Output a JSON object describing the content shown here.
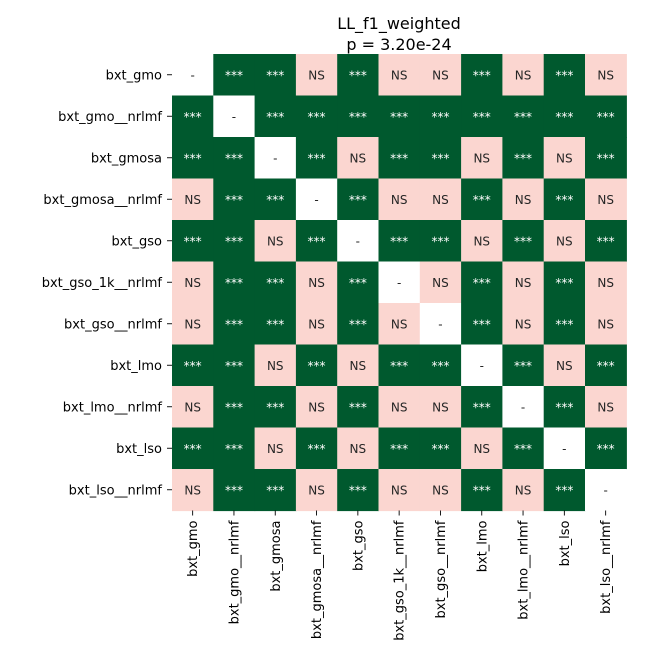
{
  "chart_data": {
    "type": "heatmap",
    "title": "LL_f1_weighted",
    "subtitle": "p = 3.20e-24",
    "labels": [
      "bxt_gmo",
      "bxt_gmo__nrlmf",
      "bxt_gmosa",
      "bxt_gmosa__nrlmf",
      "bxt_gso",
      "bxt_gso_1k__nrlmf",
      "bxt_gso__nrlmf",
      "bxt_lmo",
      "bxt_lmo__nrlmf",
      "bxt_lso",
      "bxt_lso__nrlmf"
    ],
    "cells": [
      [
        "-",
        "***",
        "***",
        "NS",
        "***",
        "NS",
        "NS",
        "***",
        "NS",
        "***",
        "NS"
      ],
      [
        "***",
        "-",
        "***",
        "***",
        "***",
        "***",
        "***",
        "***",
        "***",
        "***",
        "***"
      ],
      [
        "***",
        "***",
        "-",
        "***",
        "NS",
        "***",
        "***",
        "NS",
        "***",
        "NS",
        "***"
      ],
      [
        "NS",
        "***",
        "***",
        "-",
        "***",
        "NS",
        "NS",
        "***",
        "NS",
        "***",
        "NS"
      ],
      [
        "***",
        "***",
        "NS",
        "***",
        "-",
        "***",
        "***",
        "NS",
        "***",
        "NS",
        "***"
      ],
      [
        "NS",
        "***",
        "***",
        "NS",
        "***",
        "-",
        "NS",
        "***",
        "NS",
        "***",
        "NS"
      ],
      [
        "NS",
        "***",
        "***",
        "NS",
        "***",
        "NS",
        "-",
        "***",
        "NS",
        "***",
        "NS"
      ],
      [
        "***",
        "***",
        "NS",
        "***",
        "NS",
        "***",
        "***",
        "-",
        "***",
        "NS",
        "***"
      ],
      [
        "NS",
        "***",
        "***",
        "NS",
        "***",
        "NS",
        "NS",
        "***",
        "-",
        "***",
        "NS"
      ],
      [
        "***",
        "***",
        "NS",
        "***",
        "NS",
        "***",
        "***",
        "NS",
        "***",
        "-",
        "***"
      ],
      [
        "NS",
        "***",
        "***",
        "NS",
        "***",
        "NS",
        "NS",
        "***",
        "NS",
        "***",
        "-"
      ]
    ],
    "colors": {
      "significant": "#00592e",
      "not_significant": "#fbd6d0",
      "diagonal": "#ffffff",
      "significant_text": "#ffffff",
      "other_text": "#262626"
    }
  }
}
